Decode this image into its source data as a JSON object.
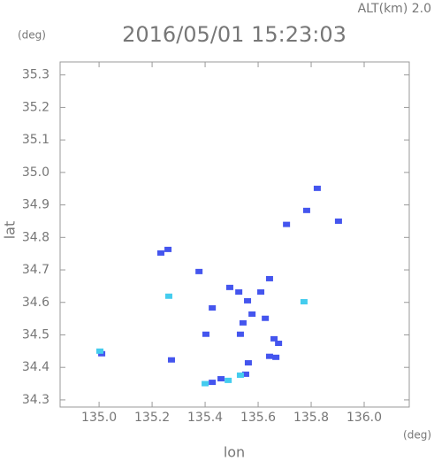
{
  "chart_data": {
    "type": "scatter",
    "title": "2016/05/01 15:23:03",
    "subtitle": "ALT(km) 2.0",
    "y_unit": "(deg)",
    "x_unit": "(deg)",
    "xlabel": "lon",
    "ylabel": "lat",
    "xlim": [
      134.853,
      136.17
    ],
    "ylim": [
      34.278,
      35.34
    ],
    "xticks": [
      {
        "value": 135.0,
        "label": "135.0"
      },
      135.2,
      135.4,
      135.6,
      135.8,
      {
        "value": 136.0,
        "label": "136.0"
      }
    ],
    "yticks": [
      35.3,
      35.2,
      35.1,
      {
        "value": 35.0,
        "label": "35.0"
      },
      34.9,
      34.8,
      34.7,
      34.6,
      34.5,
      34.4,
      34.3
    ],
    "series": [
      {
        "color": "#4455ee",
        "x": [
          135.823,
          135.783,
          135.903,
          135.707,
          135.26,
          135.233,
          135.377,
          135.493,
          135.527,
          135.56,
          135.61,
          135.643,
          135.427,
          135.577,
          135.543,
          135.627,
          135.533,
          135.403,
          135.66,
          135.677,
          135.643,
          135.667,
          135.563,
          135.553,
          135.46,
          135.427,
          135.273,
          135.01
        ],
        "y": [
          34.951,
          34.883,
          34.85,
          34.84,
          34.763,
          34.752,
          34.695,
          34.646,
          34.632,
          34.605,
          34.632,
          34.673,
          34.583,
          34.564,
          34.537,
          34.551,
          34.502,
          34.502,
          34.488,
          34.474,
          34.434,
          34.431,
          34.414,
          34.379,
          34.365,
          34.354,
          34.423,
          34.442
        ]
      },
      {
        "color": "#44ccee",
        "x": [
          135.263,
          135.773,
          135.533,
          135.003,
          135.4,
          135.487
        ],
        "y": [
          34.619,
          34.602,
          34.376,
          34.45,
          34.35,
          34.36
        ]
      }
    ]
  }
}
